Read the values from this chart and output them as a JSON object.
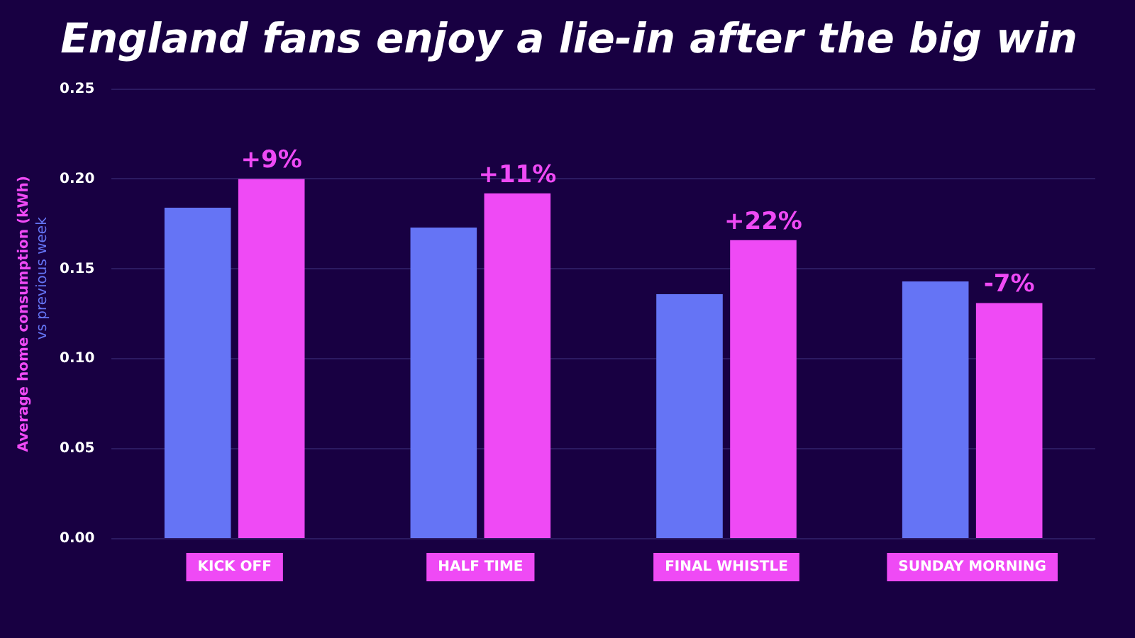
{
  "chart_data": {
    "type": "bar",
    "title": "England fans enjoy a lie-in after the big win",
    "ylabel": "Average home consumption (kWh)",
    "categories": [
      "KICK OFF",
      "HALF TIME",
      "FINAL WHISTLE",
      "SUNDAY MORNING"
    ],
    "series": [
      {
        "name": "vs previous week",
        "color": "#6574f5",
        "values": [
          0.184,
          0.173,
          0.136,
          0.143
        ]
      },
      {
        "color": "#ef4af5",
        "values": [
          0.2,
          0.192,
          0.166,
          0.131
        ]
      }
    ],
    "annotations": [
      {
        "text": "+9%",
        "x": "KICK OFF",
        "y": 0.2
      },
      {
        "text": "+11%",
        "x": "HALF TIME",
        "y": 0.192
      },
      {
        "text": "+22%",
        "x": "FINAL WHISTLE",
        "y": 0.166
      },
      {
        "text": "-7%",
        "x": "SUNDAY MORNING",
        "y": 0.131
      }
    ],
    "ylim": [
      0,
      0.25
    ],
    "yticks": [
      {
        "value": 0,
        "label": "0.00"
      },
      {
        "value": 0.05,
        "label": "0.05"
      },
      {
        "value": 0.1,
        "label": "0.10"
      },
      {
        "value": 0.15,
        "label": "0.15"
      },
      {
        "value": 0.2,
        "label": "0.20"
      },
      {
        "value": 0.25,
        "label": "0.25"
      }
    ],
    "grid": "y",
    "legend": false
  }
}
